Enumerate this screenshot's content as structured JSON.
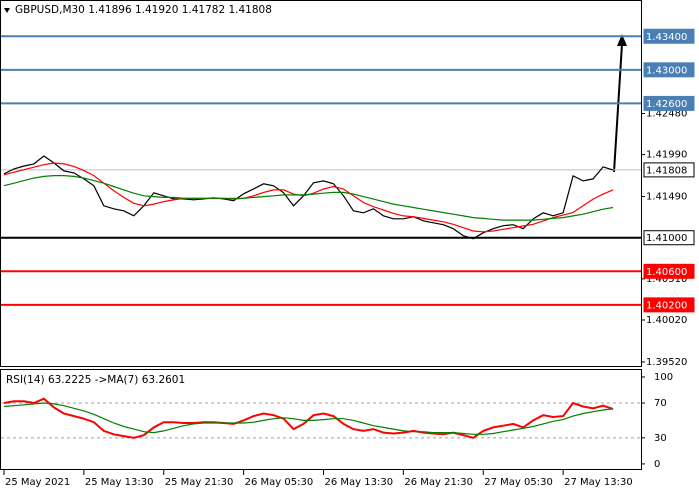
{
  "chart_data": [
    {
      "type": "line",
      "title": "GBPUSD,M30 1.41896 1.41920 1.41782 1.41808",
      "xlim": [
        -0.3,
        63.8
      ],
      "xticks": [
        {
          "value": 0,
          "label": "25 May 2021"
        },
        {
          "value": 8,
          "label": "25 May 13:30"
        },
        {
          "value": 16,
          "label": "25 May 21:30"
        },
        {
          "value": 24,
          "label": "26 May 05:30"
        },
        {
          "value": 32,
          "label": "26 May 13:30"
        },
        {
          "value": 40,
          "label": "26 May 21:30"
        },
        {
          "value": 48,
          "label": "27 May 05:30"
        },
        {
          "value": 56,
          "label": "27 May 13:30"
        }
      ],
      "ylim": [
        1.3946,
        1.4382
      ],
      "yticks": [
        {
          "value": 1.4248,
          "label": "1.42480"
        },
        {
          "value": 1.4199,
          "label": "1.41990"
        },
        {
          "value": 1.4149,
          "label": "1.41490"
        },
        {
          "value": 1.4051,
          "label": "1.40510"
        },
        {
          "value": 1.4002,
          "label": "1.40020"
        },
        {
          "value": 1.3952,
          "label": "1.39520"
        }
      ],
      "series": [
        {
          "color": "#000000",
          "values": [
            1.4176,
            1.4182,
            1.41855,
            1.41879,
            1.41974,
            1.41891,
            1.41796,
            1.41772,
            1.41701,
            1.41618,
            1.4138,
            1.41345,
            1.41321,
            1.41261,
            1.4138,
            1.41535,
            1.41499,
            1.41463,
            1.41463,
            1.41452,
            1.41463,
            1.41475,
            1.41463,
            1.4144,
            1.41523,
            1.41582,
            1.41642,
            1.41618,
            1.41535,
            1.4138,
            1.41499,
            1.41654,
            1.41677,
            1.41642,
            1.41499,
            1.41321,
            1.41297,
            1.41345,
            1.41261,
            1.41226,
            1.41226,
            1.4125,
            1.41202,
            1.41178,
            1.41155,
            1.41107,
            1.41024,
            1.40988,
            1.41059,
            1.41107,
            1.41143,
            1.41155,
            1.41107,
            1.41226,
            1.41297,
            1.41261,
            1.41297,
            1.41737,
            1.41677,
            1.41701,
            1.41844,
            1.41808
          ]
        },
        {
          "color": "#ff0000",
          "values": [
            1.4175,
            1.4178,
            1.4181,
            1.4184,
            1.4187,
            1.4189,
            1.4188,
            1.4185,
            1.418,
            1.4174,
            1.4165,
            1.4156,
            1.4148,
            1.4141,
            1.4138,
            1.414,
            1.4143,
            1.4145,
            1.4147,
            1.4147,
            1.4147,
            1.4147,
            1.4147,
            1.4146,
            1.4147,
            1.415,
            1.4154,
            1.4157,
            1.4157,
            1.4152,
            1.415,
            1.4153,
            1.4158,
            1.4161,
            1.4158,
            1.415,
            1.4142,
            1.4137,
            1.4133,
            1.4129,
            1.4126,
            1.4125,
            1.4123,
            1.4121,
            1.4119,
            1.4116,
            1.4112,
            1.4108,
            1.4107,
            1.4108,
            1.411,
            1.4112,
            1.4114,
            1.4116,
            1.412,
            1.4124,
            1.4127,
            1.413,
            1.4138,
            1.4146,
            1.4152,
            1.4157
          ]
        },
        {
          "color": "#008000",
          "values": [
            1.4162,
            1.4165,
            1.4168,
            1.4171,
            1.4173,
            1.4174,
            1.4174,
            1.4173,
            1.4171,
            1.4168,
            1.4165,
            1.4161,
            1.4157,
            1.4153,
            1.415,
            1.4149,
            1.4148,
            1.4148,
            1.4147,
            1.4147,
            1.4147,
            1.4147,
            1.4147,
            1.4147,
            1.4147,
            1.4148,
            1.4149,
            1.415,
            1.4151,
            1.4151,
            1.4151,
            1.4152,
            1.4153,
            1.4154,
            1.4154,
            1.4152,
            1.4149,
            1.4146,
            1.4143,
            1.414,
            1.4138,
            1.4136,
            1.4134,
            1.4132,
            1.413,
            1.4128,
            1.4126,
            1.4124,
            1.4123,
            1.4122,
            1.4121,
            1.4121,
            1.4121,
            1.4121,
            1.4122,
            1.4123,
            1.4124,
            1.4126,
            1.4128,
            1.4131,
            1.4134,
            1.4136
          ]
        }
      ],
      "levels": [
        {
          "value": 1.434,
          "label": "1.43400",
          "color": "#4a7fb5"
        },
        {
          "value": 1.43,
          "label": "1.43000",
          "color": "#4a7fb5"
        },
        {
          "value": 1.426,
          "label": "1.42600",
          "color": "#4a7fb5"
        },
        {
          "value": 1.41,
          "label": "1.41000",
          "color": "#000000"
        },
        {
          "value": 1.406,
          "label": "1.40600",
          "color": "#ff0000"
        },
        {
          "value": 1.402,
          "label": "1.40200",
          "color": "#ff0000"
        }
      ],
      "current": {
        "value": 1.41808,
        "label": "1.41808"
      }
    },
    {
      "type": "line",
      "title": "RSI(14) 63.2225  ->MA(7) 63.2601",
      "xlim": [
        -0.3,
        63.8
      ],
      "ylim": [
        -7,
        108
      ],
      "yticks": [
        0,
        30,
        70,
        100
      ],
      "levels": [
        30,
        70
      ],
      "series": [
        {
          "color": "#ff0000",
          "values": [
            70,
            72,
            72,
            70,
            75,
            65,
            58,
            55,
            52,
            48,
            38,
            34,
            32,
            30,
            33,
            42,
            48,
            48,
            47,
            47,
            48,
            48,
            47,
            46,
            50,
            55,
            58,
            56,
            52,
            40,
            46,
            56,
            58,
            55,
            46,
            40,
            38,
            40,
            36,
            35,
            36,
            38,
            36,
            35,
            34,
            36,
            33,
            30,
            38,
            42,
            44,
            46,
            42,
            50,
            56,
            54,
            55,
            70,
            66,
            64,
            67,
            63.2225
          ]
        },
        {
          "color": "#008000",
          "values": [
            66,
            67,
            68,
            69,
            70,
            69,
            67,
            64,
            61,
            57,
            52,
            47,
            43,
            40,
            37,
            36,
            38,
            41,
            44,
            46,
            47,
            47,
            47,
            47,
            47,
            48,
            50,
            52,
            53,
            52,
            50,
            50,
            51,
            52,
            52,
            50,
            47,
            44,
            42,
            40,
            38,
            37,
            37,
            36,
            36,
            36,
            35,
            34,
            34,
            35,
            37,
            39,
            41,
            43,
            46,
            49,
            51,
            55,
            58,
            60,
            62,
            63.2601
          ]
        }
      ]
    }
  ]
}
